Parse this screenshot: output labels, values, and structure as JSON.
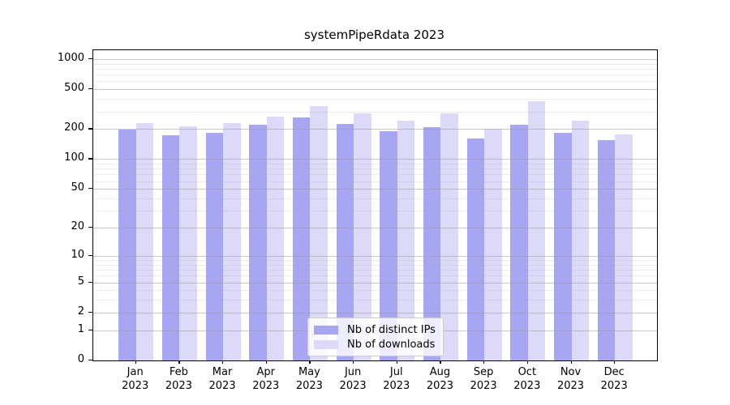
{
  "chart_data": {
    "type": "bar",
    "title": "systemPipeRdata 2023",
    "yscale": "log1p",
    "ylim": [
      0,
      1230
    ],
    "grid": true,
    "legend_position": "lower center",
    "categories": [
      "Jan",
      "Feb",
      "Mar",
      "Apr",
      "May",
      "Jun",
      "Jul",
      "Aug",
      "Sep",
      "Oct",
      "Nov",
      "Dec"
    ],
    "year_label": "2023",
    "y_ticks": [
      0,
      1,
      2,
      5,
      10,
      20,
      50,
      100,
      200,
      500,
      1000
    ],
    "series": [
      {
        "name": "Nb of distinct IPs",
        "color": "#a8a6f3",
        "values": [
          199,
          174,
          183,
          220,
          261,
          225,
          192,
          209,
          161,
          220,
          185,
          156
        ]
      },
      {
        "name": "Nb of downloads",
        "color": "#dcdaf8",
        "values": [
          230,
          213,
          229,
          265,
          338,
          287,
          245,
          285,
          201,
          377,
          241,
          177
        ]
      }
    ]
  }
}
